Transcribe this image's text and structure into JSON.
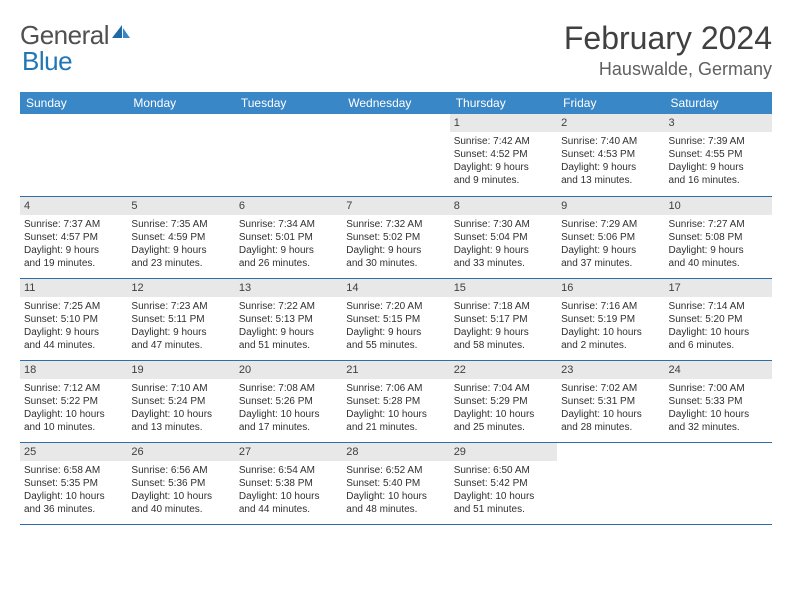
{
  "brand": {
    "part1": "General",
    "part2": "Blue"
  },
  "title": "February 2024",
  "location": "Hauswalde, Germany",
  "colors": {
    "header_bg": "#3a87c7",
    "header_text": "#ffffff",
    "divider": "#2c6fa8",
    "daynum_bg": "#e8e8e8",
    "text": "#303030",
    "brand_gray": "#505050",
    "brand_blue": "#2176b6"
  },
  "day_headers": [
    "Sunday",
    "Monday",
    "Tuesday",
    "Wednesday",
    "Thursday",
    "Friday",
    "Saturday"
  ],
  "weeks": [
    [
      null,
      null,
      null,
      null,
      {
        "n": "1",
        "sr": "Sunrise: 7:42 AM",
        "ss": "Sunset: 4:52 PM",
        "d1": "Daylight: 9 hours",
        "d2": "and 9 minutes."
      },
      {
        "n": "2",
        "sr": "Sunrise: 7:40 AM",
        "ss": "Sunset: 4:53 PM",
        "d1": "Daylight: 9 hours",
        "d2": "and 13 minutes."
      },
      {
        "n": "3",
        "sr": "Sunrise: 7:39 AM",
        "ss": "Sunset: 4:55 PM",
        "d1": "Daylight: 9 hours",
        "d2": "and 16 minutes."
      }
    ],
    [
      {
        "n": "4",
        "sr": "Sunrise: 7:37 AM",
        "ss": "Sunset: 4:57 PM",
        "d1": "Daylight: 9 hours",
        "d2": "and 19 minutes."
      },
      {
        "n": "5",
        "sr": "Sunrise: 7:35 AM",
        "ss": "Sunset: 4:59 PM",
        "d1": "Daylight: 9 hours",
        "d2": "and 23 minutes."
      },
      {
        "n": "6",
        "sr": "Sunrise: 7:34 AM",
        "ss": "Sunset: 5:01 PM",
        "d1": "Daylight: 9 hours",
        "d2": "and 26 minutes."
      },
      {
        "n": "7",
        "sr": "Sunrise: 7:32 AM",
        "ss": "Sunset: 5:02 PM",
        "d1": "Daylight: 9 hours",
        "d2": "and 30 minutes."
      },
      {
        "n": "8",
        "sr": "Sunrise: 7:30 AM",
        "ss": "Sunset: 5:04 PM",
        "d1": "Daylight: 9 hours",
        "d2": "and 33 minutes."
      },
      {
        "n": "9",
        "sr": "Sunrise: 7:29 AM",
        "ss": "Sunset: 5:06 PM",
        "d1": "Daylight: 9 hours",
        "d2": "and 37 minutes."
      },
      {
        "n": "10",
        "sr": "Sunrise: 7:27 AM",
        "ss": "Sunset: 5:08 PM",
        "d1": "Daylight: 9 hours",
        "d2": "and 40 minutes."
      }
    ],
    [
      {
        "n": "11",
        "sr": "Sunrise: 7:25 AM",
        "ss": "Sunset: 5:10 PM",
        "d1": "Daylight: 9 hours",
        "d2": "and 44 minutes."
      },
      {
        "n": "12",
        "sr": "Sunrise: 7:23 AM",
        "ss": "Sunset: 5:11 PM",
        "d1": "Daylight: 9 hours",
        "d2": "and 47 minutes."
      },
      {
        "n": "13",
        "sr": "Sunrise: 7:22 AM",
        "ss": "Sunset: 5:13 PM",
        "d1": "Daylight: 9 hours",
        "d2": "and 51 minutes."
      },
      {
        "n": "14",
        "sr": "Sunrise: 7:20 AM",
        "ss": "Sunset: 5:15 PM",
        "d1": "Daylight: 9 hours",
        "d2": "and 55 minutes."
      },
      {
        "n": "15",
        "sr": "Sunrise: 7:18 AM",
        "ss": "Sunset: 5:17 PM",
        "d1": "Daylight: 9 hours",
        "d2": "and 58 minutes."
      },
      {
        "n": "16",
        "sr": "Sunrise: 7:16 AM",
        "ss": "Sunset: 5:19 PM",
        "d1": "Daylight: 10 hours",
        "d2": "and 2 minutes."
      },
      {
        "n": "17",
        "sr": "Sunrise: 7:14 AM",
        "ss": "Sunset: 5:20 PM",
        "d1": "Daylight: 10 hours",
        "d2": "and 6 minutes."
      }
    ],
    [
      {
        "n": "18",
        "sr": "Sunrise: 7:12 AM",
        "ss": "Sunset: 5:22 PM",
        "d1": "Daylight: 10 hours",
        "d2": "and 10 minutes."
      },
      {
        "n": "19",
        "sr": "Sunrise: 7:10 AM",
        "ss": "Sunset: 5:24 PM",
        "d1": "Daylight: 10 hours",
        "d2": "and 13 minutes."
      },
      {
        "n": "20",
        "sr": "Sunrise: 7:08 AM",
        "ss": "Sunset: 5:26 PM",
        "d1": "Daylight: 10 hours",
        "d2": "and 17 minutes."
      },
      {
        "n": "21",
        "sr": "Sunrise: 7:06 AM",
        "ss": "Sunset: 5:28 PM",
        "d1": "Daylight: 10 hours",
        "d2": "and 21 minutes."
      },
      {
        "n": "22",
        "sr": "Sunrise: 7:04 AM",
        "ss": "Sunset: 5:29 PM",
        "d1": "Daylight: 10 hours",
        "d2": "and 25 minutes."
      },
      {
        "n": "23",
        "sr": "Sunrise: 7:02 AM",
        "ss": "Sunset: 5:31 PM",
        "d1": "Daylight: 10 hours",
        "d2": "and 28 minutes."
      },
      {
        "n": "24",
        "sr": "Sunrise: 7:00 AM",
        "ss": "Sunset: 5:33 PM",
        "d1": "Daylight: 10 hours",
        "d2": "and 32 minutes."
      }
    ],
    [
      {
        "n": "25",
        "sr": "Sunrise: 6:58 AM",
        "ss": "Sunset: 5:35 PM",
        "d1": "Daylight: 10 hours",
        "d2": "and 36 minutes."
      },
      {
        "n": "26",
        "sr": "Sunrise: 6:56 AM",
        "ss": "Sunset: 5:36 PM",
        "d1": "Daylight: 10 hours",
        "d2": "and 40 minutes."
      },
      {
        "n": "27",
        "sr": "Sunrise: 6:54 AM",
        "ss": "Sunset: 5:38 PM",
        "d1": "Daylight: 10 hours",
        "d2": "and 44 minutes."
      },
      {
        "n": "28",
        "sr": "Sunrise: 6:52 AM",
        "ss": "Sunset: 5:40 PM",
        "d1": "Daylight: 10 hours",
        "d2": "and 48 minutes."
      },
      {
        "n": "29",
        "sr": "Sunrise: 6:50 AM",
        "ss": "Sunset: 5:42 PM",
        "d1": "Daylight: 10 hours",
        "d2": "and 51 minutes."
      },
      null,
      null
    ]
  ]
}
